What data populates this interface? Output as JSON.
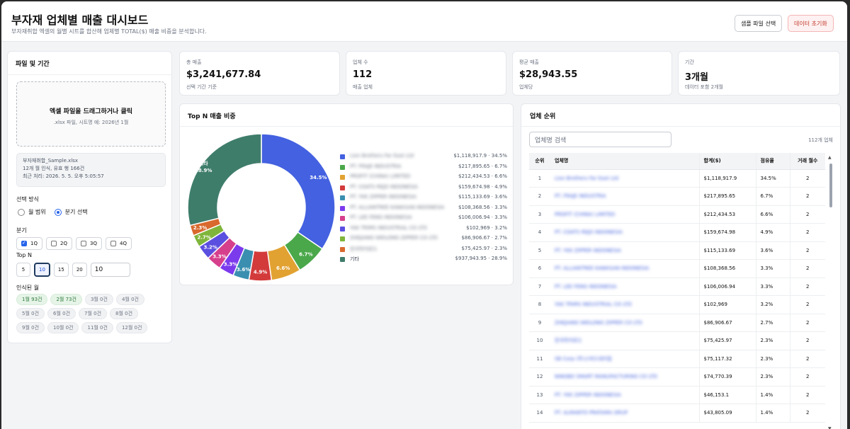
{
  "header": {
    "title": "부자재 업체별 매출 대시보드",
    "subtitle": "부자재취합 엑셀의 월별 시트를 합산해 업체별 TOTAL($) 매출 비중을 분석합니다.",
    "sample_btn": "샘플 파일 선택",
    "reset_btn": "데이터 초기화"
  },
  "left": {
    "title": "파일 및 기간",
    "drop_title": "엑셀 파일을 드래그하거나 클릭",
    "drop_sub": ".xlsx 파일, 시트명 예: 2026년 1월",
    "file_name": "부자재취합_Sample.xlsx",
    "file_line2": "12개 월 인식, 유효 행 166건",
    "file_line3": "최근 처리: 2026. 5. 5. 오후 5:05:57",
    "select_mode_label": "선택 방식",
    "mode_month": "월 범위",
    "mode_quarter": "분기 선택",
    "quarter_label": "분기",
    "quarters": [
      "1Q",
      "2Q",
      "3Q",
      "4Q"
    ],
    "topn_label": "Top N",
    "topn_options": [
      "5",
      "10",
      "15",
      "20"
    ],
    "topn_value": "10",
    "months_label": "인식된 월",
    "months": [
      "1월 93건",
      "2월 73건",
      "3월 0건",
      "4월 0건",
      "5월 0건",
      "6월 0건",
      "7월 0건",
      "8월 0건",
      "9월 0건",
      "10월 0건",
      "11월 0건",
      "12월 0건"
    ]
  },
  "stats": [
    {
      "label": "총 매출",
      "value": "$3,241,677.84",
      "sub": "선택 기간 기준"
    },
    {
      "label": "업체 수",
      "value": "112",
      "sub": "매출 업체"
    },
    {
      "label": "평균 매출",
      "value": "$28,943.55",
      "sub": "업체당"
    },
    {
      "label": "기간",
      "value": "3개월",
      "sub": "데이터 포함 2개월"
    }
  ],
  "chart_title": "Top N 매출 비중",
  "chart_data": {
    "type": "pie",
    "donut": true,
    "slices": [
      {
        "label": "Lion Brothers Far East Ltd",
        "value": 1118917.9,
        "pct": 34.5,
        "display": "$1,118,917.9 · 34.5%",
        "color": "#4361e0"
      },
      {
        "label": "PT. FRAJE INDUSTRIA",
        "value": 217895.65,
        "pct": 6.7,
        "display": "$217,895.65 · 6.7%",
        "color": "#4aa84a"
      },
      {
        "label": "PROFIT (CHINA) LIMITED",
        "value": 212434.53,
        "pct": 6.6,
        "display": "$212,434.53 · 6.6%",
        "color": "#e2a232"
      },
      {
        "label": "PT. COATS REJO INDONESIA",
        "value": 159674.98,
        "pct": 4.9,
        "display": "$159,674.98 · 4.9%",
        "color": "#d33b3b"
      },
      {
        "label": "PT. YKK ZIPPER INDONESIA",
        "value": 115133.69,
        "pct": 3.6,
        "display": "$115,133.69 · 3.6%",
        "color": "#3a8fb0"
      },
      {
        "label": "PT. ALLIANTREE KAWASAN INDONESIA",
        "value": 108368.56,
        "pct": 3.3,
        "display": "$108,368.56 · 3.3%",
        "color": "#7c3aed"
      },
      {
        "label": "PT. LEE FENG INDONESIA",
        "value": 106006.94,
        "pct": 3.3,
        "display": "$106,006.94 · 3.3%",
        "color": "#d63f8c"
      },
      {
        "label": "YAK TRIMS INDUSTRIAL CO LTD",
        "value": 102969,
        "pct": 3.2,
        "display": "$102,969 · 3.2%",
        "color": "#5b4fe0"
      },
      {
        "label": "ZHEJIANG WEILONG ZIPPER CO LTD",
        "value": 86906.67,
        "pct": 2.7,
        "display": "$86,906.67 · 2.7%",
        "color": "#7fb53a"
      },
      {
        "label": "한국학카로드",
        "value": 75425.97,
        "pct": 2.3,
        "display": "$75,425.97 · 2.3%",
        "color": "#d9692e"
      },
      {
        "label": "기타",
        "value": 937943.95,
        "pct": 28.9,
        "display": "$937,943.95 · 28.9%",
        "color": "#3f7d6b"
      }
    ]
  },
  "rank": {
    "title": "업체 순위",
    "search_placeholder": "업체명 검색",
    "count": "112개 업체",
    "headers": [
      "순위",
      "업체명",
      "합계($)",
      "점유율",
      "거래 월수"
    ],
    "rows": [
      [
        "1",
        "Lion Brothers Far East Ltd",
        "$1,118,917.9",
        "34.5%",
        "2"
      ],
      [
        "2",
        "PT. FRAJE INDUSTRIA",
        "$217,895.65",
        "6.7%",
        "2"
      ],
      [
        "3",
        "PROFIT (CHINA) LIMITED",
        "$212,434.53",
        "6.6%",
        "2"
      ],
      [
        "4",
        "PT. COATS REJO INDONESIA",
        "$159,674.98",
        "4.9%",
        "2"
      ],
      [
        "5",
        "PT. YKK ZIPPER INDONESIA",
        "$115,133.69",
        "3.6%",
        "2"
      ],
      [
        "6",
        "PT. ALLIANTREE KAWASAN INDONESIA",
        "$108,368.56",
        "3.3%",
        "2"
      ],
      [
        "7",
        "PT. LEE FENG INDONESIA",
        "$106,006.94",
        "3.3%",
        "2"
      ],
      [
        "8",
        "YAK TRIMS INDUSTRIAL CO LTD",
        "$102,969",
        "3.2%",
        "2"
      ],
      [
        "9",
        "ZHEJIANG WEILONG ZIPPER CO LTD",
        "$86,906.67",
        "2.7%",
        "2"
      ],
      [
        "10",
        "한국학카로드",
        "$75,425.97",
        "2.3%",
        "2"
      ],
      [
        "11",
        "SB Corp (주)스피드대리점",
        "$75,117.32",
        "2.3%",
        "2"
      ],
      [
        "12",
        "NINGBO SMART MANUFACTURING CO LTD",
        "$74,770.39",
        "2.3%",
        "2"
      ],
      [
        "13",
        "PT. YKK ZIPPER INDONESIA",
        "$46,153.1",
        "1.4%",
        "2"
      ],
      [
        "14",
        "PT. ALMANTO PRATAMA GRUP",
        "$43,805.09",
        "1.4%",
        "2"
      ]
    ]
  }
}
